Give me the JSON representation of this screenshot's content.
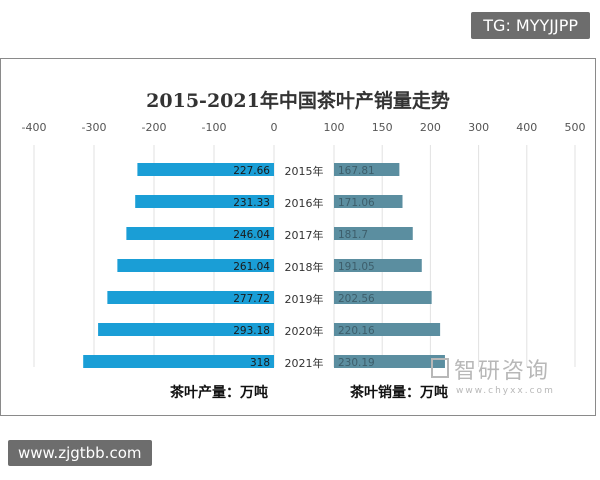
{
  "watermarks": {
    "top": "TG: MYYJJPP",
    "bottom": "www.zjgtbb.com",
    "logo_cn": "智研咨询",
    "logo_en": "www.chyxx.com"
  },
  "chart_data": {
    "type": "bar",
    "orientation": "horizontal-butterfly",
    "title": "2015-2021年中国茶叶产销量走势",
    "categories": [
      "2015年",
      "2016年",
      "2017年",
      "2018年",
      "2019年",
      "2020年",
      "2021年"
    ],
    "series": [
      {
        "name": "茶叶产量：万吨",
        "values": [
          227.66,
          231.33,
          246.04,
          261.04,
          277.72,
          293.18,
          318
        ],
        "labels": [
          "227.66",
          "231.33",
          "246.04",
          "261.04",
          "277.72",
          "293.18",
          "318"
        ],
        "color": "#1a9ed6",
        "axis_ticks": [
          "-400",
          "-300",
          "-200",
          "-100",
          "0"
        ],
        "xlim": [
          -400,
          0
        ]
      },
      {
        "name": "茶叶销量：万吨",
        "values": [
          167.81,
          171.06,
          181.7,
          191.05,
          202.56,
          220.16,
          230.19
        ],
        "labels": [
          "167.81",
          "171.06",
          "181.7",
          "191.05",
          "202.56",
          "220.16",
          "230.19"
        ],
        "color": "#5b8ea0",
        "axis_ticks": [
          "100",
          "150",
          "200",
          "300",
          "400",
          "500"
        ],
        "xlim": [
          100,
          500
        ]
      }
    ],
    "grid": true
  }
}
